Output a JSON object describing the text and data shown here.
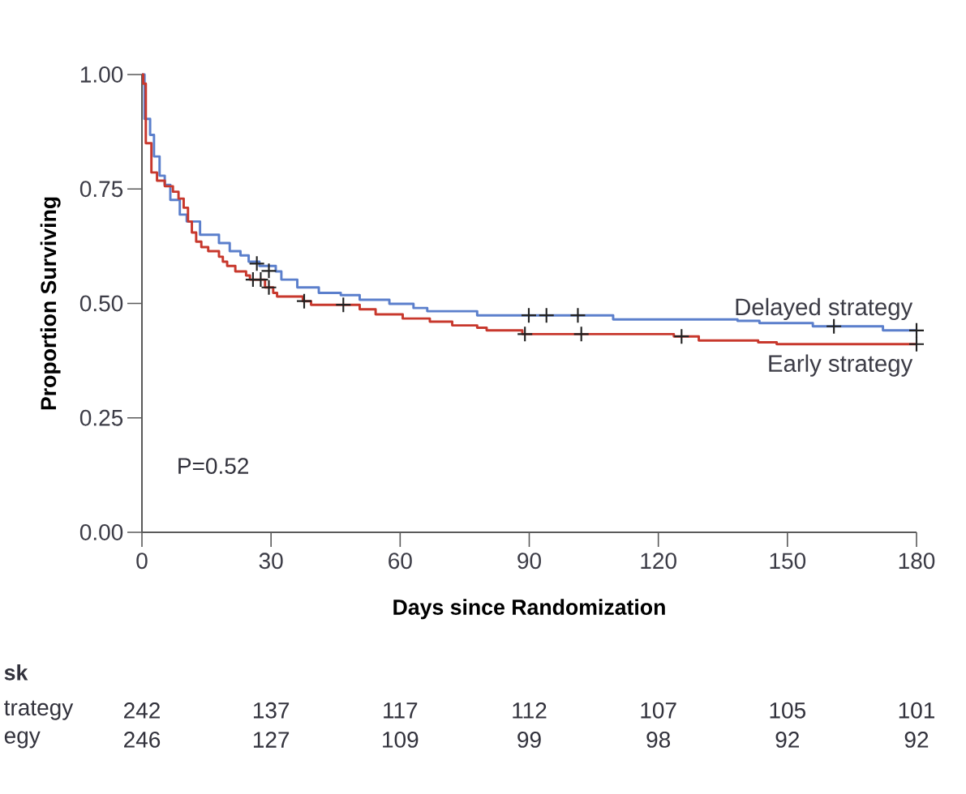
{
  "chart_data": {
    "type": "step",
    "xlabel": "Days since Randomization",
    "ylabel": "Proportion Surviving",
    "xlim": [
      0,
      180
    ],
    "ylim": [
      0,
      1
    ],
    "xticks": [
      0,
      30,
      60,
      90,
      120,
      150,
      180
    ],
    "yticks": [
      {
        "value": 0,
        "label": "0.00"
      },
      {
        "value": 0.25,
        "label": "0.25"
      },
      {
        "value": 0.5,
        "label": "0.50"
      },
      {
        "value": 0.75,
        "label": "0.75"
      },
      {
        "value": 1,
        "label": "1.00"
      }
    ],
    "series": [
      {
        "name": "Delayed strategy",
        "color": "#5b7fcc",
        "x": [
          0,
          0.6,
          1.9,
          2.8,
          4.1,
          5.3,
          6.6,
          8.8,
          10.4,
          13.5,
          17.9,
          20.4,
          22.9,
          24.8,
          27.3,
          31.1,
          32.4,
          36.1,
          41.1,
          46.2,
          50.6,
          57.5,
          63.1,
          66.3,
          77.9,
          109.5,
          138.4,
          143.5,
          155.9,
          172.2,
          180
        ],
        "values": [
          1.0,
          0.903,
          0.868,
          0.821,
          0.779,
          0.759,
          0.726,
          0.694,
          0.679,
          0.65,
          0.632,
          0.614,
          0.605,
          0.591,
          0.582,
          0.57,
          0.552,
          0.535,
          0.523,
          0.518,
          0.508,
          0.499,
          0.49,
          0.483,
          0.474,
          0.465,
          0.462,
          0.457,
          0.45,
          0.441,
          0.441
        ]
      },
      {
        "name": "Early strategy",
        "color": "#c8382d",
        "x": [
          0,
          0.3,
          0.9,
          2.2,
          3.5,
          5.3,
          7.2,
          8.5,
          9.7,
          10.7,
          11.6,
          12.6,
          13.8,
          15.4,
          17.9,
          18.8,
          19.8,
          21.7,
          24.2,
          25.1,
          28.6,
          30.5,
          31.4,
          37.4,
          39.3,
          50.6,
          54.3,
          60.6,
          66.9,
          72.1,
          77.9,
          80.1,
          88.4,
          123.6,
          129.4,
          143.2,
          147.5,
          180
        ],
        "values": [
          1.0,
          0.98,
          0.85,
          0.786,
          0.768,
          0.756,
          0.744,
          0.729,
          0.709,
          0.679,
          0.655,
          0.635,
          0.623,
          0.614,
          0.602,
          0.591,
          0.582,
          0.57,
          0.561,
          0.552,
          0.535,
          0.523,
          0.515,
          0.505,
          0.497,
          0.487,
          0.476,
          0.467,
          0.46,
          0.452,
          0.447,
          0.441,
          0.433,
          0.428,
          0.419,
          0.415,
          0.411,
          0.411
        ]
      },
      {
        "type": "scatter",
        "marker": "cross",
        "color": "#222222",
        "x": [
          26.7,
          29.5,
          89.9,
          94.0,
          101.3,
          160.8,
          180
        ],
        "values": [
          0.587,
          0.571,
          0.474,
          0.474,
          0.474,
          0.45,
          0.441
        ]
      },
      {
        "type": "scatter",
        "marker": "cross",
        "color": "#222222",
        "x": [
          25.8,
          27.6,
          29.5,
          37.7,
          46.8,
          89.0,
          102.1,
          125.4,
          180
        ],
        "values": [
          0.552,
          0.552,
          0.535,
          0.505,
          0.497,
          0.433,
          0.433,
          0.428,
          0.411
        ]
      }
    ],
    "annotations": [
      "P=0.52",
      "sk",
      "trategy",
      "242",
      "137",
      "117",
      "112",
      "107",
      "105",
      "101",
      "egy",
      "246",
      "127",
      "109",
      "99",
      "98",
      "92",
      "92"
    ]
  }
}
